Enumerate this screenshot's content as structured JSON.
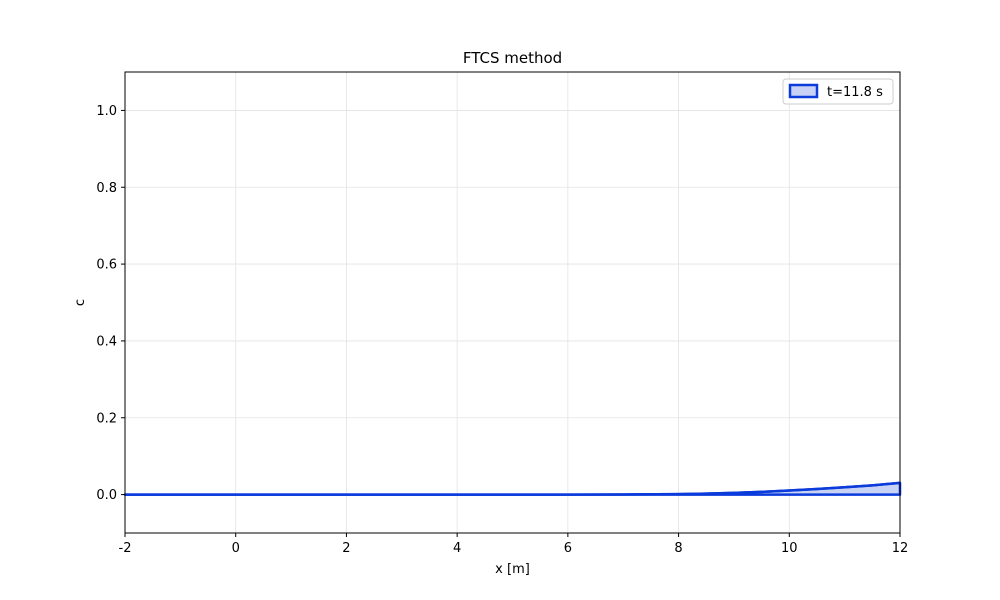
{
  "chart_data": {
    "type": "area",
    "title": "FTCS method",
    "xlabel": "x [m]",
    "ylabel": "c",
    "xlim": [
      -2,
      12
    ],
    "ylim": [
      -0.1,
      1.1
    ],
    "xticks": [
      "-2",
      "0",
      "2",
      "4",
      "6",
      "8",
      "10",
      "12"
    ],
    "yticks": [
      "0.0",
      "0.2",
      "0.4",
      "0.6",
      "0.8",
      "1.0"
    ],
    "grid": true,
    "legend_position": "upper right",
    "series": [
      {
        "name": "t=11.8 s",
        "line_color": "#0b3bdb",
        "fill_color": "#c8d2f5",
        "x": [
          -2,
          0,
          2,
          4,
          6,
          7,
          8,
          8.5,
          9,
          9.5,
          10,
          10.5,
          11,
          11.5,
          12
        ],
        "y": [
          0,
          0,
          0,
          0,
          0,
          0.0003,
          0.0012,
          0.0025,
          0.0045,
          0.007,
          0.0105,
          0.0145,
          0.019,
          0.024,
          0.0305
        ]
      }
    ]
  }
}
